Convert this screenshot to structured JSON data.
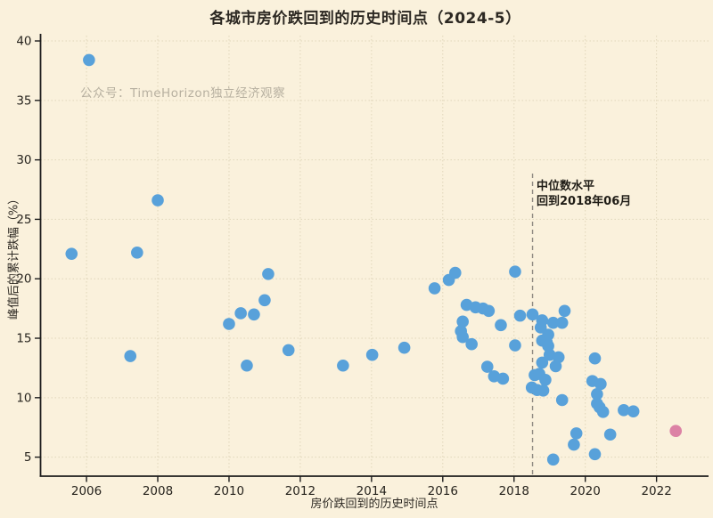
{
  "chart_data": {
    "type": "scatter",
    "title": "各城市房价跌回到的历史时间点（2024-5）",
    "watermark": "公众号：TimeHorizon独立经济观察",
    "xlabel": "房价跌回到的历史时间点",
    "ylabel": "峰值后的累计跌幅（%）",
    "xlim": [
      2004.71,
      2023.46
    ],
    "ylim": [
      3.4,
      40.45
    ],
    "xticks": [
      2006,
      2008,
      2010,
      2012,
      2014,
      2016,
      2018,
      2020,
      2022
    ],
    "yticks": [
      5,
      10,
      15,
      20,
      25,
      30,
      35,
      40
    ],
    "grid": true,
    "legend": "none",
    "median_line": {
      "x": 2018.52,
      "style": "dashed",
      "label_line1": "中位数水平",
      "label_line2": "回到2018年06月"
    },
    "series": [
      {
        "name": "cities",
        "color": "#58a1da",
        "points": [
          [
            2005.58,
            22.1
          ],
          [
            2006.07,
            38.4
          ],
          [
            2007.23,
            13.5
          ],
          [
            2007.42,
            22.2
          ],
          [
            2008.0,
            26.6
          ],
          [
            2010.0,
            16.2
          ],
          [
            2010.33,
            17.1
          ],
          [
            2010.5,
            12.7
          ],
          [
            2010.7,
            17.0
          ],
          [
            2011.0,
            18.2
          ],
          [
            2011.1,
            20.4
          ],
          [
            2011.67,
            14.0
          ],
          [
            2013.2,
            12.7
          ],
          [
            2014.02,
            13.6
          ],
          [
            2014.92,
            14.2
          ],
          [
            2015.77,
            19.2
          ],
          [
            2016.17,
            19.9
          ],
          [
            2016.35,
            20.5
          ],
          [
            2016.51,
            15.6
          ],
          [
            2016.56,
            16.4
          ],
          [
            2016.56,
            15.1
          ],
          [
            2016.67,
            17.8
          ],
          [
            2016.81,
            14.5
          ],
          [
            2016.92,
            17.6
          ],
          [
            2017.13,
            17.5
          ],
          [
            2017.25,
            12.6
          ],
          [
            2017.29,
            17.3
          ],
          [
            2017.44,
            11.8
          ],
          [
            2017.63,
            16.1
          ],
          [
            2017.69,
            11.6
          ],
          [
            2018.03,
            20.6
          ],
          [
            2018.03,
            14.4
          ],
          [
            2018.17,
            16.9
          ],
          [
            2018.52,
            17.0
          ],
          [
            2018.5,
            10.85
          ],
          [
            2018.58,
            11.9
          ],
          [
            2018.65,
            10.65
          ],
          [
            2018.71,
            12.0
          ],
          [
            2018.75,
            15.9
          ],
          [
            2018.79,
            16.5
          ],
          [
            2018.79,
            14.8
          ],
          [
            2018.79,
            12.95
          ],
          [
            2018.82,
            10.6
          ],
          [
            2018.88,
            11.5
          ],
          [
            2018.92,
            14.65
          ],
          [
            2018.96,
            15.3
          ],
          [
            2018.96,
            14.35
          ],
          [
            2019.0,
            13.6
          ],
          [
            2019.1,
            16.3
          ],
          [
            2019.1,
            4.8
          ],
          [
            2019.17,
            12.65
          ],
          [
            2019.25,
            13.4
          ],
          [
            2019.35,
            16.3
          ],
          [
            2019.35,
            9.8
          ],
          [
            2019.42,
            17.3
          ],
          [
            2019.68,
            6.05
          ],
          [
            2019.75,
            7.0
          ],
          [
            2020.2,
            11.4
          ],
          [
            2020.27,
            13.3
          ],
          [
            2020.27,
            5.25
          ],
          [
            2020.33,
            10.3
          ],
          [
            2020.33,
            9.5
          ],
          [
            2020.4,
            9.2
          ],
          [
            2020.43,
            11.15
          ],
          [
            2020.5,
            8.8
          ],
          [
            2020.7,
            6.9
          ],
          [
            2021.08,
            8.95
          ],
          [
            2021.35,
            8.85
          ]
        ]
      },
      {
        "name": "highlight",
        "color": "#dc82a5",
        "points": [
          [
            2022.54,
            7.2
          ]
        ]
      }
    ],
    "colors": {
      "background": "#faf1dc",
      "dot": "#58a1da",
      "highlight_dot": "#dc82a5",
      "grid": "#e0d6ba",
      "spine": "#1c1c1c",
      "tick_label": "#26231d",
      "text": "#2c2822",
      "watermark": "#b7b0a0",
      "median_line": "#8f8a82"
    }
  }
}
